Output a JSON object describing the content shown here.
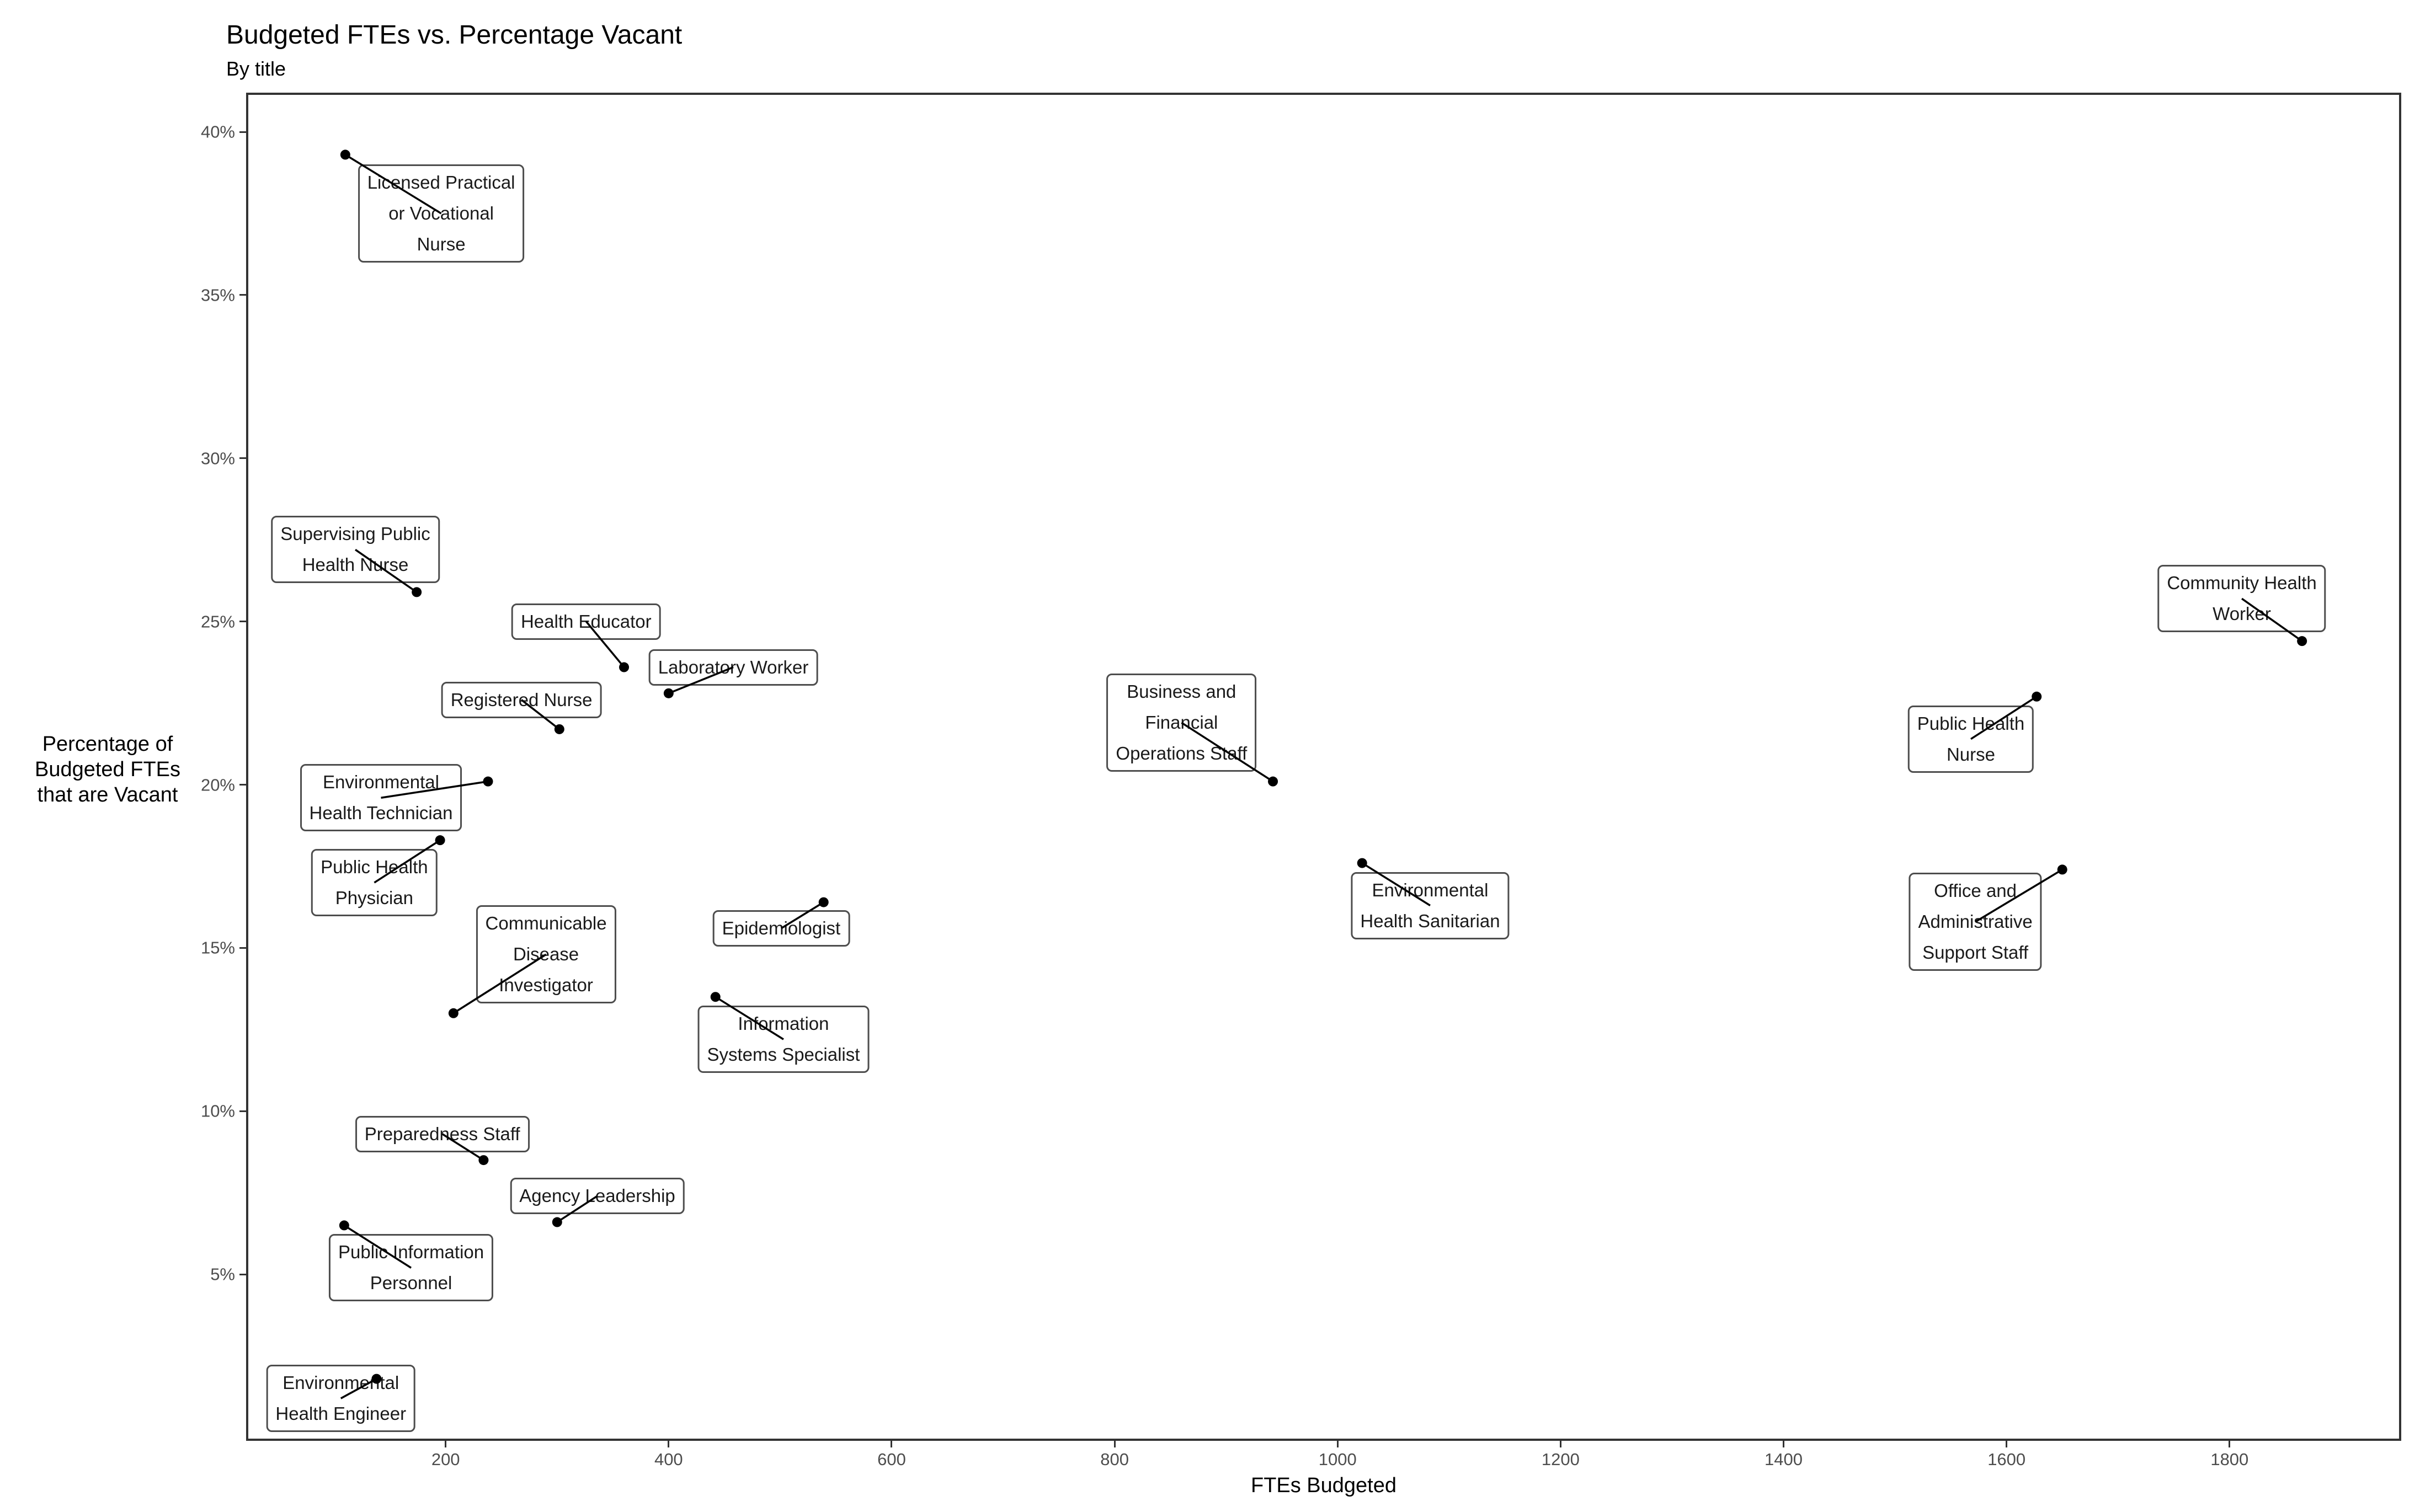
{
  "chart_data": {
    "type": "scatter",
    "title": "Budgeted FTEs vs. Percentage Vacant",
    "subtitle": "By title",
    "xlabel": "FTEs Budgeted",
    "ylabel": "Percentage of\nBudgeted FTEs\nthat are Vacant",
    "xlim": [
      21,
      1954
    ],
    "ylim": [
      -0.1,
      41.2
    ],
    "x_ticks": [
      200,
      400,
      600,
      800,
      1000,
      1200,
      1400,
      1600,
      1800
    ],
    "y_ticks": [
      5,
      10,
      15,
      20,
      25,
      30,
      35,
      40
    ],
    "y_tick_suffix": "%",
    "grid": false,
    "legend": "none",
    "point_color": "#000000",
    "points": [
      {
        "label": "Licensed Practical\nor Vocational\nNurse",
        "x": 110,
        "y": 39.3,
        "label_x": 196,
        "label_y": 37.5
      },
      {
        "label": "Supervising Public\nHealth Nurse",
        "x": 174,
        "y": 25.9,
        "label_x": 119,
        "label_y": 27.2
      },
      {
        "label": "Health Educator",
        "x": 360,
        "y": 23.6,
        "label_x": 326,
        "label_y": 25.0
      },
      {
        "label": "Laboratory Worker",
        "x": 400,
        "y": 22.8,
        "label_x": 458,
        "label_y": 23.6
      },
      {
        "label": "Registered Nurse",
        "x": 302,
        "y": 21.7,
        "label_x": 268,
        "label_y": 22.6
      },
      {
        "label": "Environmental\nHealth Technician",
        "x": 238,
        "y": 20.1,
        "label_x": 142,
        "label_y": 19.6
      },
      {
        "label": "Public Health\nPhysician",
        "x": 195,
        "y": 18.3,
        "label_x": 136,
        "label_y": 17.0
      },
      {
        "label": "Communicable\nDisease\nInvestigator",
        "x": 207,
        "y": 13.0,
        "label_x": 290,
        "label_y": 14.8
      },
      {
        "label": "Epidemiologist",
        "x": 539,
        "y": 16.4,
        "label_x": 501,
        "label_y": 15.6
      },
      {
        "label": "Information\nSystems Specialist",
        "x": 442,
        "y": 13.5,
        "label_x": 503,
        "label_y": 12.2
      },
      {
        "label": "Business and\nFinancial\nOperations Staff",
        "x": 942,
        "y": 20.1,
        "label_x": 860,
        "label_y": 21.9
      },
      {
        "label": "Environmental\nHealth Sanitarian",
        "x": 1022,
        "y": 17.6,
        "label_x": 1083,
        "label_y": 16.3
      },
      {
        "label": "Public Health\nNurse",
        "x": 1627,
        "y": 22.7,
        "label_x": 1568,
        "label_y": 21.4
      },
      {
        "label": "Community Health\nWorker",
        "x": 1865,
        "y": 24.4,
        "label_x": 1811,
        "label_y": 25.7
      },
      {
        "label": "Office and\nAdministrative\nSupport Staff",
        "x": 1650,
        "y": 17.4,
        "label_x": 1572,
        "label_y": 15.8
      },
      {
        "label": "Preparedness Staff",
        "x": 234,
        "y": 8.5,
        "label_x": 197,
        "label_y": 9.3
      },
      {
        "label": "Agency Leadership",
        "x": 300,
        "y": 6.6,
        "label_x": 336,
        "label_y": 7.4
      },
      {
        "label": "Public Information\nPersonnel",
        "x": 109,
        "y": 6.5,
        "label_x": 169,
        "label_y": 5.2
      },
      {
        "label": "Environmental\nHealth Engineer",
        "x": 138,
        "y": 1.8,
        "label_x": 106,
        "label_y": 1.2
      }
    ]
  }
}
